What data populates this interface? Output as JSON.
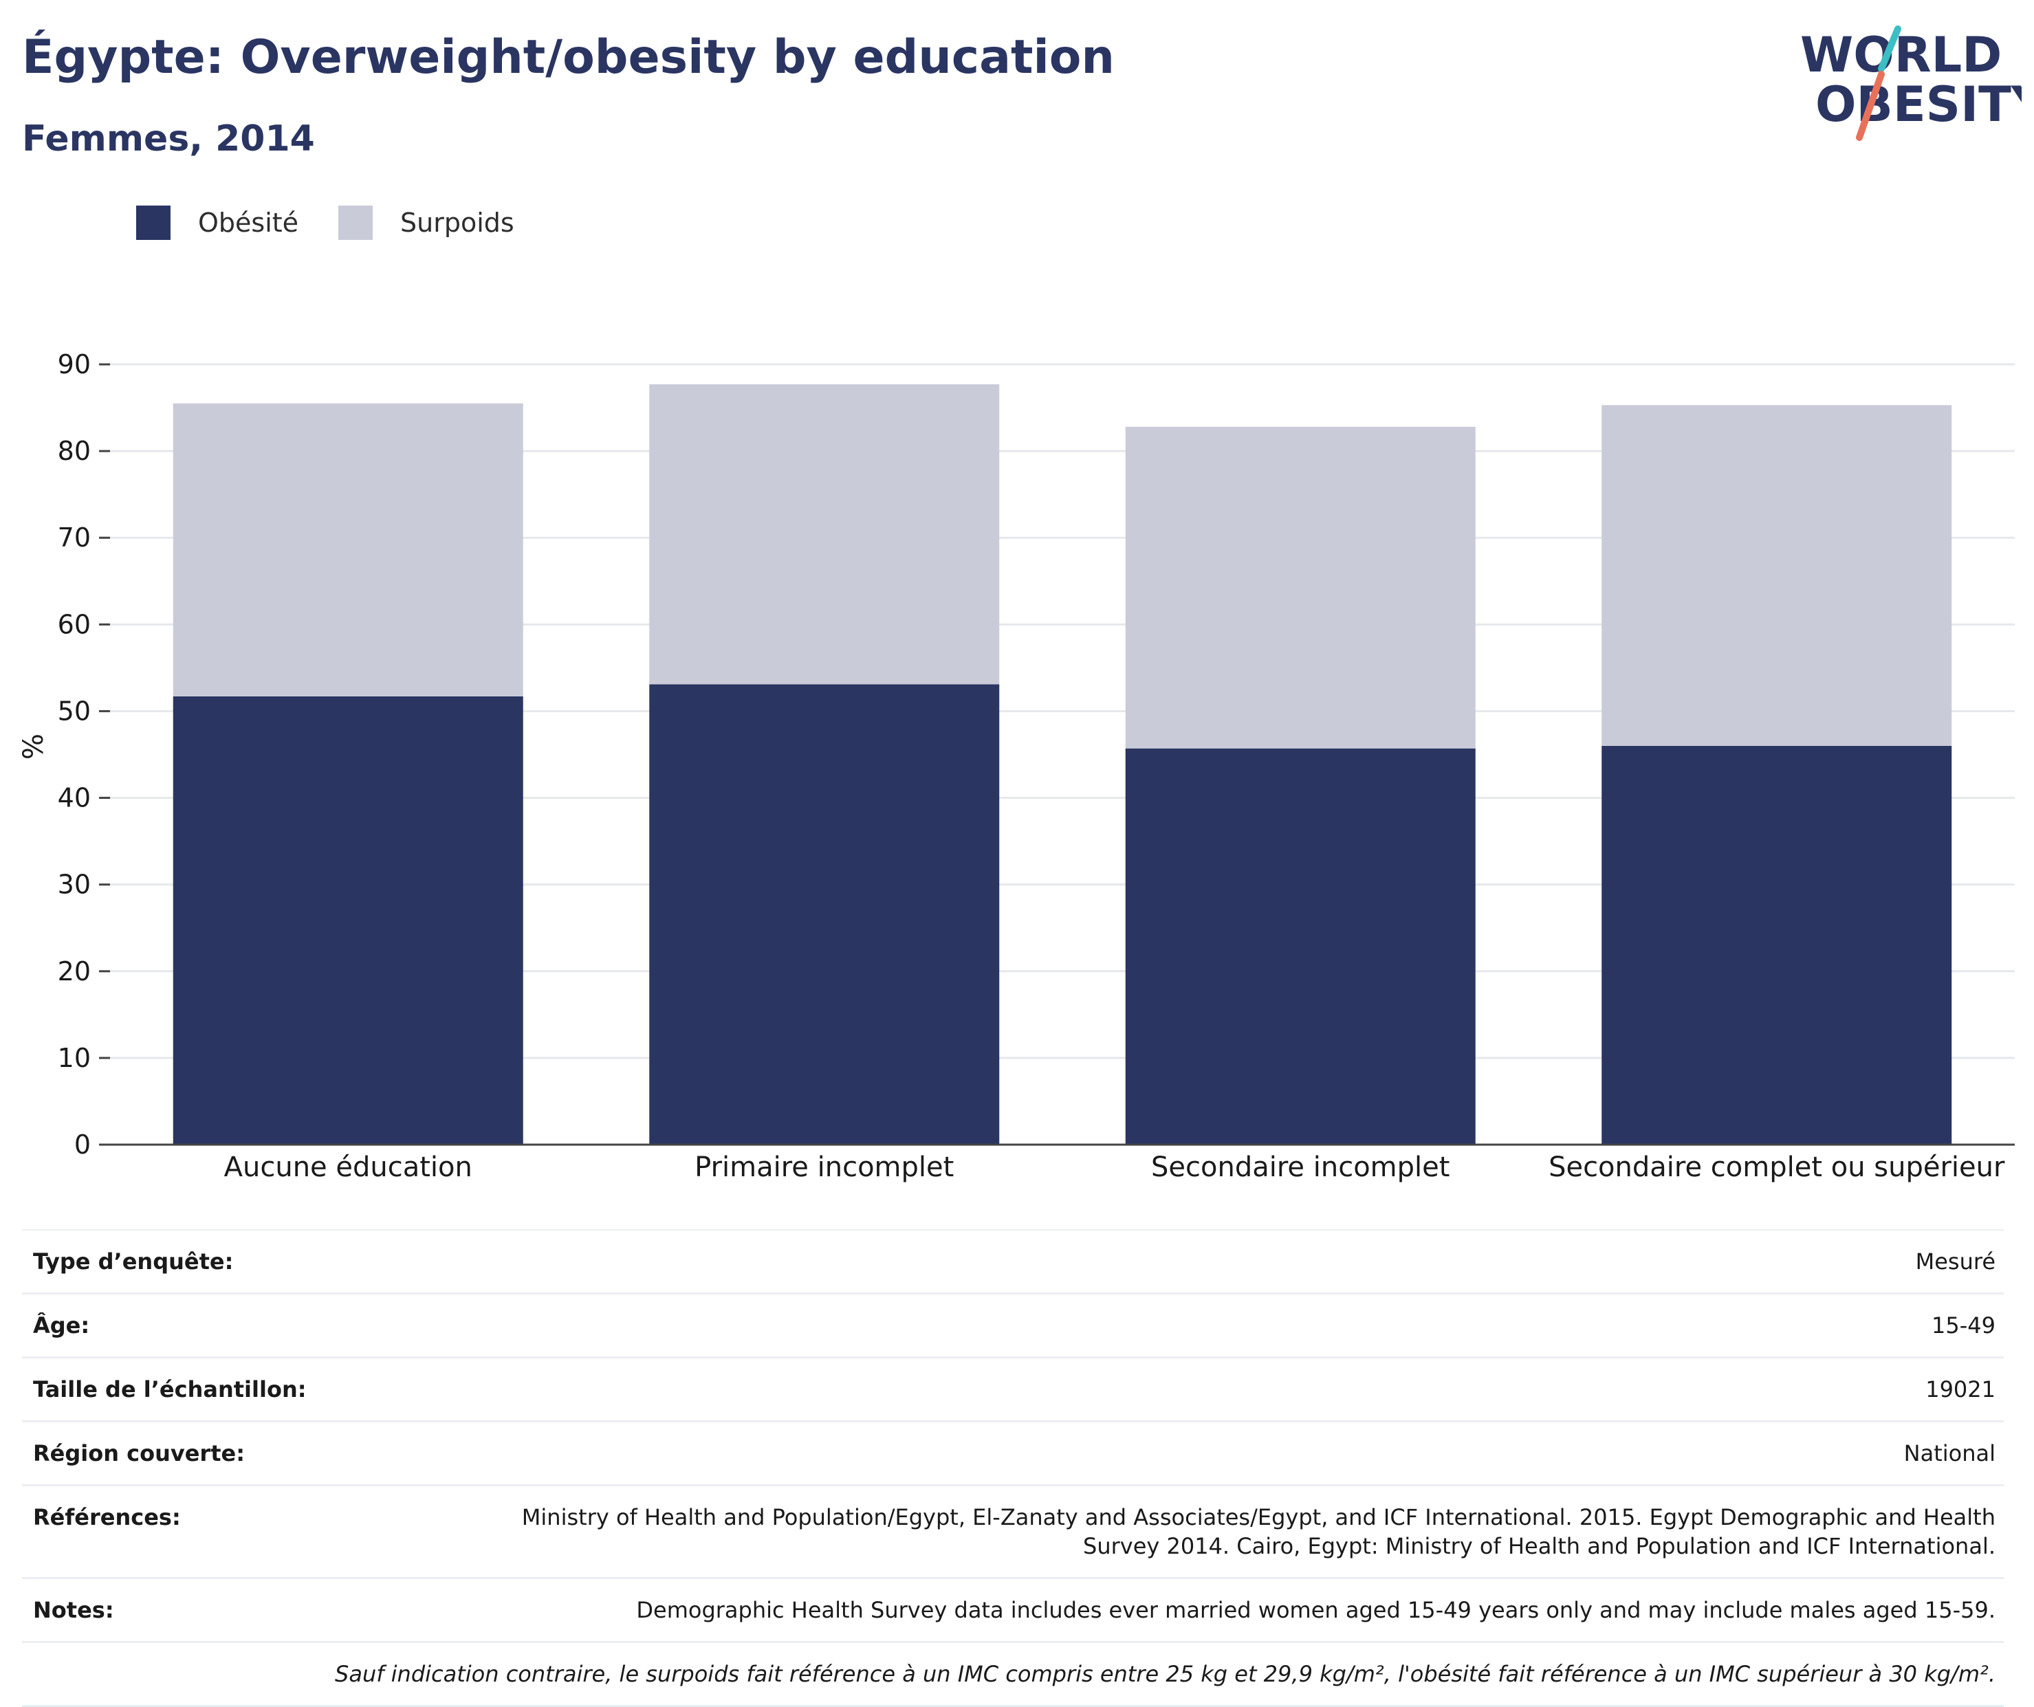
{
  "header": {
    "title": "Égypte: Overweight/obesity by education",
    "subtitle": "Femmes, 2014"
  },
  "logo": {
    "line1": "WORLD",
    "line2": "OBESITY"
  },
  "colors": {
    "obesity": "#2a3562",
    "overweight": "#c9ccd8",
    "accent_teal": "#3bbec4",
    "accent_coral": "#e8715a"
  },
  "chart_data": {
    "type": "bar",
    "stacked": true,
    "categories": [
      "Aucune éducation",
      "Primaire incomplet",
      "Secondaire incomplet",
      "Secondaire complet ou supérieur"
    ],
    "series": [
      {
        "name": "Obésité",
        "values": [
          51.7,
          53.1,
          45.7,
          46.0
        ]
      },
      {
        "name": "Surpoids",
        "values": [
          33.8,
          34.6,
          37.1,
          39.3
        ]
      }
    ],
    "ylabel": "%",
    "ylim": [
      0,
      90
    ],
    "yticks": [
      0,
      10,
      20,
      30,
      40,
      50,
      60,
      70,
      80,
      90
    ],
    "grid": true,
    "legend_position": "top-left"
  },
  "info": {
    "rows": [
      {
        "label": "Type d’enquête:",
        "value": "Mesuré"
      },
      {
        "label": "Âge:",
        "value": "15-49"
      },
      {
        "label": "Taille de l’échantillon:",
        "value": "19021"
      },
      {
        "label": "Région couverte:",
        "value": "National"
      },
      {
        "label": "Références:",
        "value": "Ministry of Health and Population/Egypt, El-Zanaty and Associates/Egypt, and ICF International. 2015. Egypt Demographic and Health Survey 2014. Cairo, Egypt: Ministry of Health and Population and ICF International."
      },
      {
        "label": "Notes:",
        "value": "Demographic Health Survey data includes ever married women aged 15-49 years only and may include males aged 15-59."
      }
    ],
    "footnote": "Sauf indication contraire, le surpoids fait référence à un IMC compris entre 25 kg et 29,9 kg/m², l'obésité fait référence à un IMC supérieur à 30 kg/m²."
  }
}
